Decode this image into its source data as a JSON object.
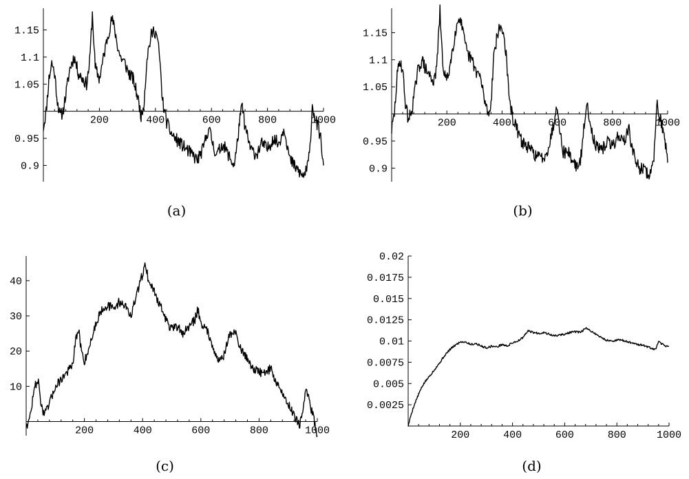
{
  "chart_data": [
    {
      "id": "a",
      "type": "line",
      "caption": "(a)",
      "xlim": [
        0,
        1000
      ],
      "ylim": [
        0.87,
        1.19
      ],
      "x_axis_at": 1.0,
      "xticks": [
        200,
        400,
        600,
        800,
        1000
      ],
      "xtick_labels": [
        "200",
        "400",
        "600",
        "800",
        "1000"
      ],
      "yticks": [
        0.9,
        0.95,
        1.05,
        1.1,
        1.15
      ],
      "ytick_labels": [
        "0.9",
        "0.95",
        "1.05",
        "1.1",
        "1.15"
      ],
      "noise": 0.012,
      "seed": 11,
      "series": [
        {
          "x": [
            0,
            10,
            20,
            30,
            40,
            50,
            60,
            70,
            80,
            95,
            110,
            125,
            140,
            155,
            165,
            175,
            185,
            200,
            215,
            230,
            245,
            255,
            265,
            275,
            290,
            305,
            320,
            335,
            350,
            360,
            370,
            385,
            395,
            405,
            415,
            425,
            440,
            455,
            470,
            490,
            510,
            530,
            550,
            570,
            590,
            600,
            610,
            620,
            640,
            660,
            680,
            690,
            700,
            710,
            720,
            740,
            760,
            780,
            800,
            820,
            840,
            860,
            870,
            880,
            895,
            910,
            925,
            940,
            950,
            960,
            975,
            990,
            1000
          ],
          "y": [
            0.97,
            1.0,
            1.06,
            1.09,
            1.07,
            1.02,
            0.99,
            1.0,
            1.03,
            1.08,
            1.1,
            1.07,
            1.06,
            1.05,
            1.09,
            1.18,
            1.08,
            1.06,
            1.1,
            1.14,
            1.17,
            1.15,
            1.12,
            1.1,
            1.09,
            1.07,
            1.06,
            1.03,
            0.99,
            1.02,
            1.1,
            1.14,
            1.15,
            1.14,
            1.1,
            1.02,
            0.98,
            0.96,
            0.95,
            0.94,
            0.93,
            0.92,
            0.91,
            0.93,
            0.97,
            0.95,
            0.93,
            0.92,
            0.94,
            0.92,
            0.9,
            0.93,
            0.98,
            1.01,
            0.97,
            0.93,
            0.92,
            0.94,
            0.93,
            0.95,
            0.94,
            0.97,
            0.94,
            0.91,
            0.9,
            0.89,
            0.88,
            0.89,
            0.92,
            1.01,
            0.98,
            0.95,
            0.9
          ]
        }
      ]
    },
    {
      "id": "b",
      "type": "line",
      "caption": "(b)",
      "xlim": [
        0,
        1000
      ],
      "ylim": [
        0.875,
        1.195
      ],
      "x_axis_at": 1.0,
      "xticks": [
        200,
        400,
        600,
        800,
        1000
      ],
      "xtick_labels": [
        "200",
        "400",
        "600",
        "800",
        "1000"
      ],
      "yticks": [
        0.9,
        0.95,
        1.05,
        1.1,
        1.15
      ],
      "ytick_labels": [
        "0.9",
        "0.95",
        "1.05",
        "1.1",
        "1.15"
      ],
      "noise": 0.012,
      "seed": 29,
      "series": [
        {
          "x": [
            0,
            10,
            20,
            30,
            40,
            50,
            60,
            70,
            80,
            95,
            110,
            125,
            140,
            155,
            165,
            175,
            185,
            200,
            215,
            230,
            245,
            255,
            265,
            275,
            290,
            305,
            320,
            335,
            350,
            360,
            370,
            385,
            395,
            405,
            415,
            425,
            440,
            455,
            470,
            490,
            510,
            530,
            550,
            570,
            590,
            600,
            610,
            620,
            640,
            660,
            680,
            690,
            700,
            710,
            720,
            740,
            760,
            780,
            800,
            820,
            840,
            860,
            870,
            880,
            895,
            910,
            925,
            940,
            950,
            960,
            975,
            990,
            1000
          ],
          "y": [
            0.97,
            1.0,
            1.07,
            1.1,
            1.08,
            1.02,
            0.99,
            1.0,
            1.03,
            1.08,
            1.1,
            1.08,
            1.07,
            1.06,
            1.1,
            1.19,
            1.09,
            1.06,
            1.1,
            1.15,
            1.18,
            1.16,
            1.13,
            1.11,
            1.1,
            1.08,
            1.07,
            1.03,
            1.0,
            1.02,
            1.11,
            1.15,
            1.16,
            1.15,
            1.11,
            1.03,
            0.99,
            0.97,
            0.95,
            0.94,
            0.93,
            0.92,
            0.92,
            0.94,
            0.99,
            1.02,
            0.97,
            0.93,
            0.93,
            0.91,
            0.9,
            0.94,
            0.99,
            1.02,
            0.98,
            0.94,
            0.93,
            0.95,
            0.94,
            0.96,
            0.95,
            0.97,
            0.94,
            0.92,
            0.9,
            0.9,
            0.89,
            0.89,
            0.92,
            1.02,
            0.99,
            0.95,
            0.91
          ]
        }
      ]
    },
    {
      "id": "c",
      "type": "line",
      "caption": "(c)",
      "xlim": [
        0,
        1000
      ],
      "ylim": [
        -4,
        47
      ],
      "x_axis_at": 0,
      "xticks": [
        200,
        400,
        600,
        800,
        1000
      ],
      "xtick_labels": [
        "200",
        "400",
        "600",
        "800",
        "1000"
      ],
      "yticks": [
        10,
        20,
        30,
        40
      ],
      "ytick_labels": [
        "10",
        "20",
        "30",
        "40"
      ],
      "noise": 1.3,
      "seed": 47,
      "series": [
        {
          "x": [
            0,
            10,
            20,
            30,
            40,
            50,
            60,
            70,
            80,
            100,
            120,
            140,
            160,
            170,
            180,
            190,
            200,
            220,
            240,
            260,
            280,
            300,
            320,
            340,
            360,
            380,
            400,
            410,
            420,
            440,
            460,
            480,
            500,
            520,
            540,
            560,
            580,
            590,
            600,
            620,
            640,
            660,
            680,
            700,
            720,
            740,
            760,
            780,
            800,
            820,
            840,
            860,
            880,
            900,
            920,
            940,
            950,
            960,
            975,
            990,
            1000
          ],
          "y": [
            -1,
            0,
            5,
            10,
            12,
            6,
            2,
            3,
            5,
            10,
            12,
            14,
            16,
            23,
            26,
            20,
            17,
            22,
            28,
            32,
            33,
            32,
            34,
            33,
            30,
            36,
            42,
            45,
            40,
            37,
            33,
            29,
            26,
            27,
            25,
            27,
            29,
            32,
            28,
            26,
            22,
            17,
            19,
            25,
            25,
            20,
            18,
            15,
            14,
            14,
            15,
            11,
            8,
            5,
            2,
            -1,
            3,
            9,
            5,
            0,
            -4
          ]
        }
      ]
    },
    {
      "id": "d",
      "type": "line",
      "caption": "(d)",
      "xlim": [
        0,
        1000
      ],
      "ylim": [
        0,
        0.02
      ],
      "x_axis_at": 0,
      "xticks": [
        200,
        400,
        600,
        800,
        1000
      ],
      "xtick_labels": [
        "200",
        "400",
        "600",
        "800",
        "1000"
      ],
      "yticks": [
        0.0025,
        0.005,
        0.0075,
        0.01,
        0.0125,
        0.015,
        0.0175,
        0.02
      ],
      "ytick_labels": [
        "0.0025",
        "0.005",
        "0.0075",
        "0.01",
        "0.0125",
        "0.015",
        "0.0175",
        "0.02"
      ],
      "noise": 0.00012,
      "seed": 5,
      "series": [
        {
          "x": [
            0,
            10,
            20,
            30,
            45,
            60,
            80,
            100,
            120,
            140,
            160,
            180,
            200,
            220,
            240,
            260,
            280,
            300,
            320,
            340,
            360,
            380,
            400,
            420,
            440,
            460,
            480,
            500,
            520,
            540,
            560,
            580,
            600,
            620,
            640,
            660,
            680,
            700,
            720,
            740,
            760,
            780,
            800,
            820,
            840,
            860,
            880,
            900,
            920,
            940,
            950,
            960,
            970,
            980,
            990,
            1000
          ],
          "y": [
            0.0,
            0.0012,
            0.0022,
            0.003,
            0.0041,
            0.005,
            0.0058,
            0.0066,
            0.0074,
            0.0083,
            0.009,
            0.0095,
            0.0099,
            0.0099,
            0.0096,
            0.0097,
            0.0094,
            0.0092,
            0.0094,
            0.0093,
            0.0096,
            0.0094,
            0.0098,
            0.01,
            0.0104,
            0.0112,
            0.011,
            0.0109,
            0.011,
            0.0108,
            0.0106,
            0.0107,
            0.0108,
            0.011,
            0.0111,
            0.011,
            0.0115,
            0.0112,
            0.0108,
            0.0104,
            0.0101,
            0.01,
            0.0101,
            0.0101,
            0.0099,
            0.0098,
            0.0096,
            0.0095,
            0.0093,
            0.009,
            0.0091,
            0.0099,
            0.0097,
            0.0095,
            0.0094,
            0.0094
          ]
        }
      ]
    }
  ]
}
